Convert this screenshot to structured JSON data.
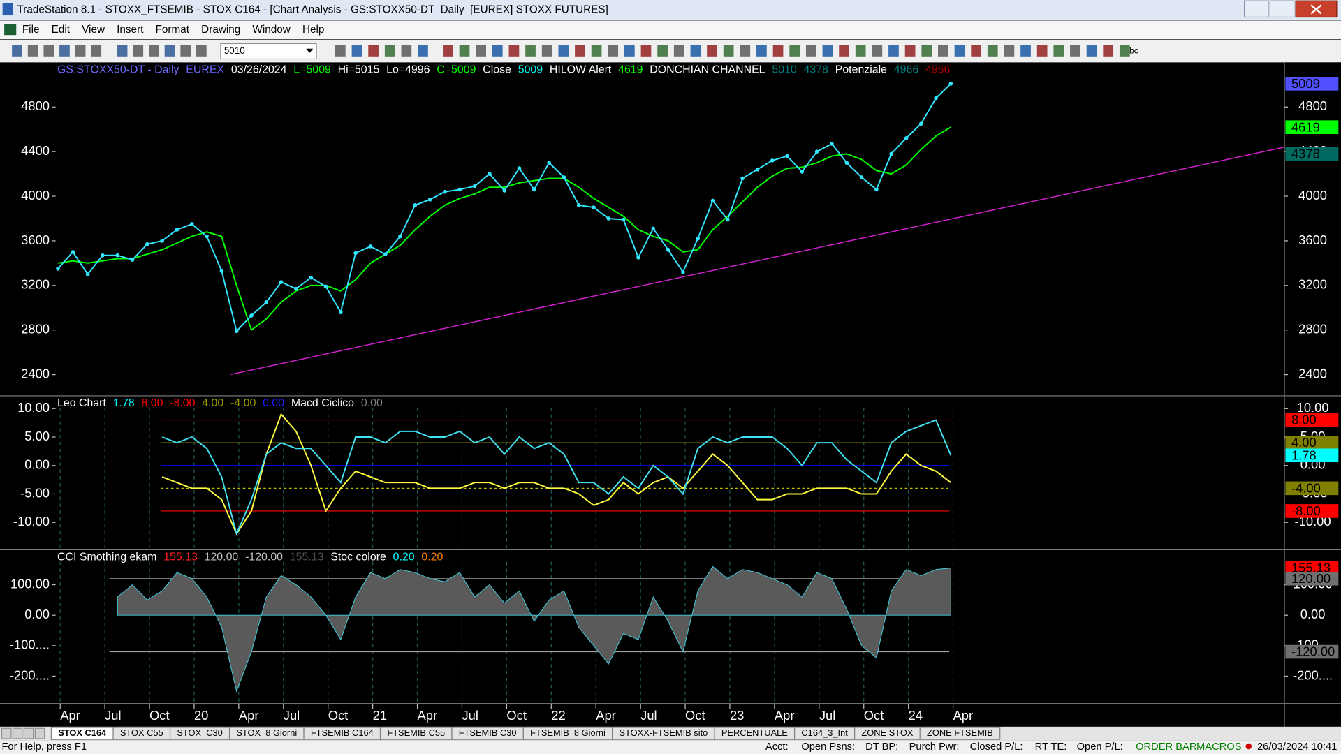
{
  "window": {
    "title": "TradeStation 8.1 - STOXX_FTSEMIB - STOX C164 - [Chart Analysis - GS:STOXX50-DT  Daily  [EUREX] STOXX FUTURES]"
  },
  "menu": [
    "File",
    "Edit",
    "View",
    "Insert",
    "Format",
    "Drawing",
    "Window",
    "Help"
  ],
  "toolbar": {
    "symbol": "5010",
    "text_tool": "abc"
  },
  "chart_data": [
    {
      "type": "line",
      "header": [
        {
          "text": "GS:STOXX50-DT - Daily",
          "color": "#6a6aff"
        },
        {
          "text": "EUREX",
          "color": "#6a6aff"
        },
        {
          "text": "03/26/2024",
          "color": "#ffffff"
        },
        {
          "text": "L=5009",
          "color": "#00ff00"
        },
        {
          "text": "Hi=5015",
          "color": "#ffffff"
        },
        {
          "text": "Lo=4996",
          "color": "#ffffff"
        },
        {
          "text": "C=5009",
          "color": "#00ff00"
        },
        {
          "text": "Close",
          "color": "#ffffff"
        },
        {
          "text": "5009",
          "color": "#00ffff"
        },
        {
          "text": "HILOW Alert",
          "color": "#ffffff"
        },
        {
          "text": "4619",
          "color": "#00ff00"
        },
        {
          "text": "DONCHIAN CHANNEL",
          "color": "#ffffff"
        },
        {
          "text": "5010",
          "color": "#008080"
        },
        {
          "text": "4378",
          "color": "#008080"
        },
        {
          "text": "Potenziale",
          "color": "#ffffff"
        },
        {
          "text": "4966",
          "color": "#008080"
        },
        {
          "text": "4966",
          "color": "#a00000"
        }
      ],
      "ylim": [
        2210,
        5200
      ],
      "yticks": [
        2400,
        2800,
        3200,
        3600,
        4000,
        4400,
        4800
      ],
      "series": [
        {
          "color": "#00ff00",
          "values": [
            3400,
            3420,
            3400,
            3420,
            3440,
            3440,
            3480,
            3520,
            3580,
            3640,
            3680,
            3640,
            3200,
            2800,
            2900,
            3050,
            3150,
            3200,
            3200,
            3150,
            3250,
            3400,
            3480,
            3560,
            3700,
            3820,
            3920,
            3980,
            4020,
            4080,
            4080,
            4120,
            4140,
            4160,
            4160,
            4080,
            3980,
            3900,
            3820,
            3700,
            3640,
            3600,
            3500,
            3520,
            3700,
            3820,
            3950,
            4080,
            4180,
            4250,
            4260,
            4300,
            4360,
            4380,
            4330,
            4230,
            4200,
            4280,
            4420,
            4540,
            4619
          ]
        },
        {
          "color": "#33e6ff",
          "markers": true,
          "values": [
            3350,
            3500,
            3300,
            3470,
            3470,
            3430,
            3570,
            3600,
            3700,
            3750,
            3640,
            3330,
            2790,
            2930,
            3050,
            3230,
            3170,
            3270,
            3190,
            2960,
            3490,
            3550,
            3480,
            3640,
            3920,
            3970,
            4040,
            4060,
            4090,
            4200,
            4050,
            4250,
            4060,
            4300,
            4170,
            3920,
            3900,
            3800,
            3790,
            3450,
            3710,
            3520,
            3320,
            3620,
            3960,
            3790,
            4160,
            4240,
            4320,
            4360,
            4220,
            4400,
            4470,
            4300,
            4170,
            4060,
            4380,
            4520,
            4650,
            4880,
            5009
          ]
        }
      ],
      "right_labels": [
        {
          "value": 5009,
          "label": "5009",
          "color": "#5050ff"
        },
        {
          "value": 4619,
          "label": "4619",
          "color": "#00ff00"
        },
        {
          "value": 4378,
          "label": "4378",
          "color": "#006a60"
        }
      ]
    },
    {
      "type": "line",
      "header": [
        {
          "text": "Leo Chart",
          "color": "#ffffff"
        },
        {
          "text": "1.78",
          "color": "#00ffff"
        },
        {
          "text": "8.00",
          "color": "#ff0000"
        },
        {
          "text": "-8.00",
          "color": "#ff0000"
        },
        {
          "text": "4.00",
          "color": "#a0a000"
        },
        {
          "text": "-4.00",
          "color": "#a0a000"
        },
        {
          "text": "0.00",
          "color": "#2020ff"
        },
        {
          "text": "Macd Ciclico",
          "color": "#ffffff"
        },
        {
          "text": "0.00",
          "color": "#808080"
        }
      ],
      "ylim": [
        -14.8,
        12.25
      ],
      "yticks": [
        {
          "value": 10,
          "label": "10.00"
        },
        {
          "value": 5,
          "label": "5.00"
        },
        {
          "value": 0,
          "label": "0.00"
        },
        {
          "value": -5,
          "label": "-5.00"
        },
        {
          "value": -10,
          "label": "-10.00"
        }
      ],
      "levels": [
        {
          "value": 8,
          "color": "#ff0000"
        },
        {
          "value": 4,
          "color": "#808000"
        },
        {
          "value": 0,
          "color": "#0000ff"
        },
        {
          "value": -4,
          "color": "#c0c000"
        },
        {
          "value": -8,
          "color": "#ff0000"
        }
      ],
      "series": [
        {
          "color": "#ffff40",
          "values": [
            null,
            null,
            null,
            null,
            null,
            null,
            null,
            -2,
            -3,
            -4,
            -4,
            -6,
            -12,
            -8,
            2,
            9,
            6,
            0,
            -8,
            -4,
            -1,
            -2,
            -3,
            -3,
            -3,
            -4,
            -4,
            -4,
            -3,
            -3,
            -4,
            -3,
            -3,
            -4,
            -4,
            -5,
            -7,
            -6,
            -3,
            -5,
            -3,
            -2,
            -4,
            -1,
            2,
            0,
            -3,
            -6,
            -6,
            -5,
            -5,
            -4,
            -4,
            -4,
            -5,
            -5,
            -1,
            2,
            0,
            -1,
            -3
          ]
        },
        {
          "color": "#40e0f0",
          "values": [
            null,
            null,
            null,
            null,
            null,
            null,
            null,
            5,
            4,
            5,
            3,
            -2,
            -12,
            -6,
            2,
            4,
            3,
            3,
            0,
            -3,
            5,
            5,
            4,
            6,
            6,
            5,
            5,
            6,
            4,
            5,
            2,
            5,
            3,
            4,
            2,
            -3,
            -3,
            -5,
            -2,
            -4,
            0,
            -2,
            -5,
            3,
            5,
            4,
            5,
            5,
            5,
            3,
            0,
            4,
            4,
            1,
            -1,
            -3,
            4,
            6,
            7,
            8,
            1.78
          ]
        }
      ],
      "right_labels": [
        {
          "value": 8,
          "label": "8.00",
          "color": "#ff0000"
        },
        {
          "value": 4,
          "label": "4.00",
          "color": "#808000"
        },
        {
          "value": 1.78,
          "label": "1.78",
          "color": "#00ffff"
        },
        {
          "value": -4,
          "label": "-4.00",
          "color": "#808000"
        },
        {
          "value": -8,
          "label": "-8.00",
          "color": "#ff0000"
        }
      ]
    },
    {
      "type": "area",
      "header": [
        {
          "text": "CCI Smothing ekam",
          "color": "#ffffff"
        },
        {
          "text": "155.13",
          "color": "#ff2020"
        },
        {
          "text": "120.00",
          "color": "#c0c0c0"
        },
        {
          "text": "-120.00",
          "color": "#c0c0c0"
        },
        {
          "text": "155.13",
          "color": "#505050"
        },
        {
          "text": "Stoc colore",
          "color": "#ffffff"
        },
        {
          "text": "0.20",
          "color": "#00ffff"
        },
        {
          "text": "0.20",
          "color": "#ff8000"
        }
      ],
      "ylim": [
        -290,
        215
      ],
      "yticks": [
        {
          "value": 100,
          "label": "100.00"
        },
        {
          "value": 0,
          "label": "0.00"
        },
        {
          "value": -100,
          "label": "-100...."
        },
        {
          "value": -200,
          "label": "-200...."
        }
      ],
      "levels": [
        {
          "value": 120,
          "color": "#a0a0a0"
        },
        {
          "value": -120,
          "color": "#a0a0a0"
        }
      ],
      "series": [
        {
          "color": "#5a5a5a",
          "values": [
            null,
            null,
            null,
            null,
            60,
            100,
            50,
            80,
            140,
            120,
            60,
            -40,
            -250,
            -120,
            60,
            130,
            100,
            60,
            0,
            -80,
            60,
            140,
            120,
            150,
            140,
            120,
            110,
            140,
            60,
            100,
            40,
            80,
            -20,
            50,
            80,
            -40,
            -100,
            -160,
            -60,
            -80,
            60,
            -20,
            -120,
            80,
            160,
            120,
            150,
            140,
            120,
            100,
            60,
            140,
            120,
            20,
            -100,
            -140,
            80,
            150,
            130,
            150,
            155.13
          ]
        }
      ],
      "right_labels": [
        {
          "value": 155.13,
          "label": "155.13",
          "color": "#ff0000"
        },
        {
          "value": 120,
          "label": "120.00",
          "color": "#707070"
        },
        {
          "value": -120,
          "label": "-120.00",
          "color": "#707070"
        }
      ],
      "xtick_labels": [
        "Apr",
        "Jul",
        "Oct",
        "20",
        "Apr",
        "Jul",
        "Oct",
        "21",
        "Apr",
        "Jul",
        "Oct",
        "22",
        "Apr",
        "Jul",
        "Oct",
        "23",
        "Apr",
        "Jul",
        "Oct",
        "24",
        "Apr"
      ]
    }
  ],
  "tabs": [
    "STOX C164",
    "STOX C55",
    "STOX  C30",
    "STOX  8 Giorni",
    "FTSEMIB C164",
    "FTSEMIB C55",
    "FTSEMIB C30",
    "FTSEMIB  8 Giorni",
    "STOXX-FTSEMIB sito",
    "PERCENTUALE",
    "C164_3_Int",
    "ZONE STOX",
    "ZONE FTSEMIB"
  ],
  "status": [
    {
      "text": "For Help, press F1",
      "color": "#000000"
    },
    {
      "text": "Acct:",
      "color": "#000000"
    },
    {
      "text": "Open Psns:",
      "color": "#000000"
    },
    {
      "text": "DT BP:",
      "color": "#000000"
    },
    {
      "text": "Purch Pwr:",
      "color": "#000000"
    },
    {
      "text": "Closed P/L:",
      "color": "#000000"
    },
    {
      "text": "RT TE:",
      "color": "#000000"
    },
    {
      "text": "Open P/L:",
      "color": "#000000"
    },
    {
      "text": "ORDER BAR",
      "color": "#008000"
    },
    {
      "text": "MACROS",
      "color": "#008000"
    },
    {
      "text": "26/03/2024 10:41",
      "color": "#000000"
    }
  ]
}
